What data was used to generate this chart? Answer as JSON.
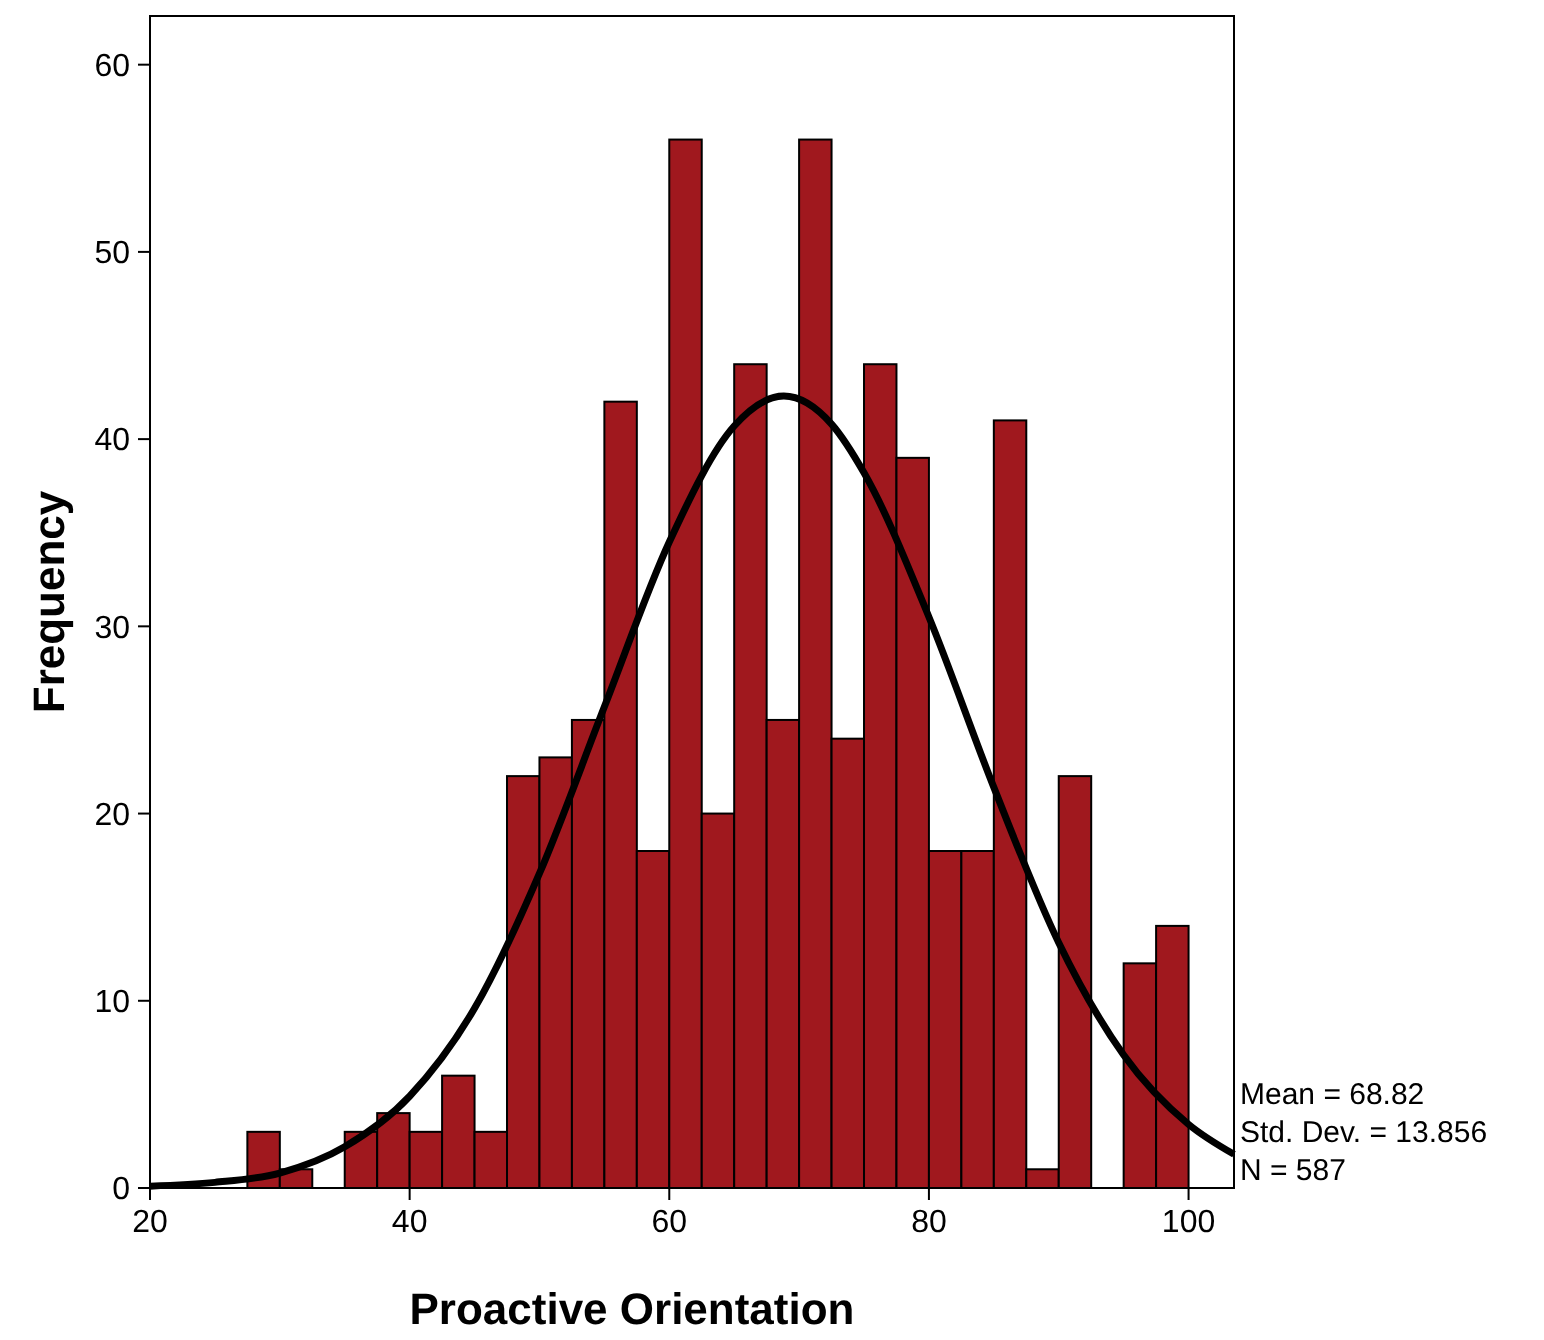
{
  "chart_data": {
    "type": "histogram",
    "xlabel": "Proactive Orientation",
    "ylabel": "Frequency",
    "bins": [
      27.5,
      30,
      32.5,
      35,
      37.5,
      40,
      42.5,
      45,
      47.5,
      50,
      52.5,
      55,
      57.5,
      60,
      62.5,
      65,
      67.5,
      70,
      72.5,
      75,
      77.5,
      80,
      82.5,
      85,
      87.5,
      90,
      92.5,
      95,
      97.5,
      100
    ],
    "series": [
      {
        "color": "#a0181e",
        "values": [
          3,
          1,
          0,
          3,
          4,
          3,
          6,
          3,
          22,
          23,
          25,
          42,
          18,
          56,
          20,
          44,
          25,
          56,
          24,
          44,
          39,
          18,
          18,
          41,
          1,
          22,
          0,
          12,
          14
        ]
      },
      {
        "type": "line",
        "color": "#000000",
        "x": [
          20,
          25,
          30,
          35,
          40,
          45,
          50,
          55,
          60,
          65,
          68.82,
          72.5,
          75,
          80,
          85,
          90,
          95,
          100,
          103.5
        ],
        "values": [
          0.1,
          0.3,
          0.8,
          2.2,
          4.9,
          9.6,
          16.8,
          25.7,
          34.5,
          40.7,
          42.3,
          40.8,
          38.2,
          30.5,
          21.4,
          13.1,
          7.1,
          3.4,
          1.8
        ]
      }
    ],
    "xlim": [
      20,
      103.5
    ],
    "ylim": [
      0,
      62.6
    ],
    "xticks": [
      20,
      40,
      60,
      80,
      100
    ],
    "yticks": [
      0,
      10,
      20,
      30,
      40,
      50,
      60
    ],
    "grid": false,
    "line_style": "solid",
    "marker": "none",
    "annotations": [
      "Mean = 68.82",
      "Std. Dev. = 13.856",
      "N = 587"
    ]
  }
}
